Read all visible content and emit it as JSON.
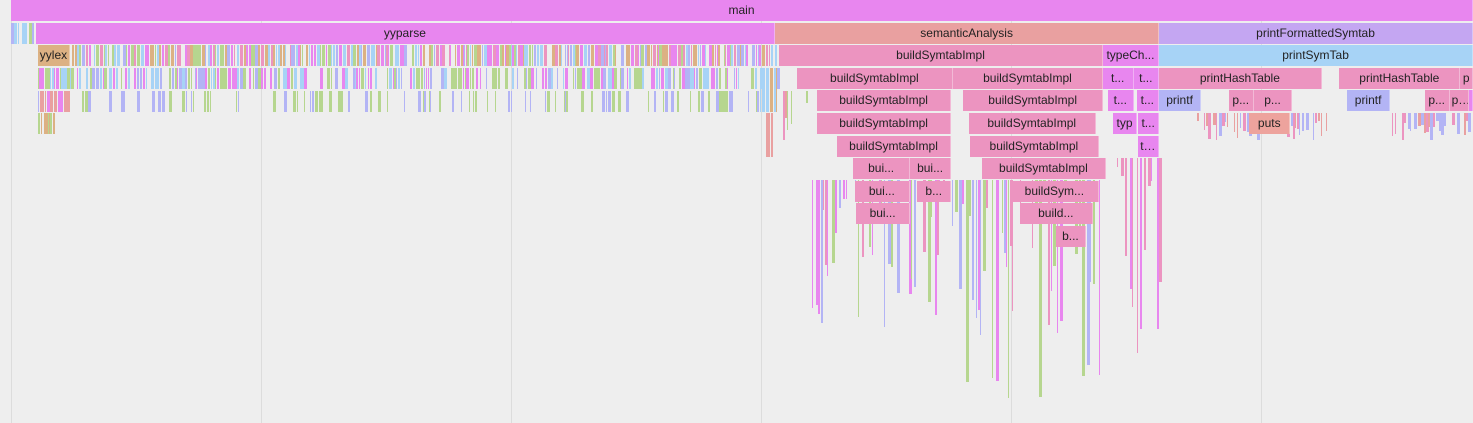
{
  "colors": {
    "magenta": "#e886ef",
    "salmon": "#e9a0a0",
    "pink": "#ec94c0",
    "violet": "#c4a6f2",
    "sky": "#a7d3f6",
    "tan": "#dcb183",
    "green": "#b6d68f",
    "periwinkle": "#b3b4f5",
    "orange_pink": "#eda39d"
  },
  "frames": [
    {
      "name": "main",
      "depth": 0,
      "start": 0.0,
      "end": 1.0,
      "color": "magenta"
    },
    {
      "name": "yyparse",
      "depth": 1,
      "start": 0.0168,
      "end": 0.5227,
      "color": "magenta"
    },
    {
      "name": "semanticAnalysis",
      "depth": 1,
      "start": 0.5227,
      "end": 0.7853,
      "color": "salmon"
    },
    {
      "name": "printFormattedSymtab",
      "depth": 1,
      "start": 0.7853,
      "end": 1.0,
      "color": "violet"
    },
    {
      "name": "yylex",
      "depth": 2,
      "start": 0.0182,
      "end": 0.0406,
      "color": "tan"
    },
    {
      "name": "buildSymtabImpl",
      "depth": 2,
      "start": 0.5255,
      "end": 0.7468,
      "color": "pink"
    },
    {
      "name": "typeCh...",
      "depth": 2,
      "start": 0.7468,
      "end": 0.7853,
      "color": "magenta"
    },
    {
      "name": "printSymTab",
      "depth": 2,
      "start": 0.7853,
      "end": 1.0,
      "color": "sky"
    },
    {
      "name": "buildSymtabImpl",
      "depth": 3,
      "start": 0.5374,
      "end": 0.6444,
      "color": "pink"
    },
    {
      "name": "buildSymtabImpl",
      "depth": 3,
      "start": 0.6444,
      "end": 0.7468,
      "color": "pink"
    },
    {
      "name": "t...",
      "depth": 3,
      "start": 0.7468,
      "end": 0.7678,
      "color": "magenta"
    },
    {
      "name": "t...",
      "depth": 3,
      "start": 0.7678,
      "end": 0.7853,
      "color": "magenta"
    },
    {
      "name": "printHashTable",
      "depth": 3,
      "start": 0.7853,
      "end": 0.8965,
      "color": "pink"
    },
    {
      "name": "printHashTable",
      "depth": 3,
      "start": 0.9085,
      "end": 0.9914,
      "color": "pink"
    },
    {
      "name": "p",
      "depth": 3,
      "start": 0.9914,
      "end": 1.0,
      "color": "pink"
    },
    {
      "name": "buildSymtabImpl",
      "depth": 4,
      "start": 0.5514,
      "end": 0.643,
      "color": "pink"
    },
    {
      "name": "buildSymtabImpl",
      "depth": 4,
      "start": 0.6515,
      "end": 0.7468,
      "color": "pink"
    },
    {
      "name": "t...",
      "depth": 4,
      "start": 0.7504,
      "end": 0.7678,
      "color": "magenta"
    },
    {
      "name": "t...",
      "depth": 4,
      "start": 0.7699,
      "end": 0.7853,
      "color": "magenta"
    },
    {
      "name": "printf",
      "depth": 4,
      "start": 0.7853,
      "end": 0.814,
      "color": "periwinkle"
    },
    {
      "name": "p...",
      "depth": 4,
      "start": 0.833,
      "end": 0.85,
      "color": "pink"
    },
    {
      "name": "p...",
      "depth": 4,
      "start": 0.85,
      "end": 0.8765,
      "color": "pink"
    },
    {
      "name": "printf",
      "depth": 4,
      "start": 0.914,
      "end": 0.9432,
      "color": "periwinkle"
    },
    {
      "name": "p...",
      "depth": 4,
      "start": 0.967,
      "end": 0.984,
      "color": "pink"
    },
    {
      "name": "p...",
      "depth": 4,
      "start": 0.984,
      "end": 0.9975,
      "color": "pink"
    },
    {
      "name": "p",
      "depth": 4,
      "start": 0.9975,
      "end": 1.0,
      "color": "magenta"
    },
    {
      "name": "buildSymtabImpl",
      "depth": 5,
      "start": 0.5514,
      "end": 0.643,
      "color": "pink"
    },
    {
      "name": "buildSymtabImpl",
      "depth": 5,
      "start": 0.655,
      "end": 0.742,
      "color": "pink"
    },
    {
      "name": "typ",
      "depth": 5,
      "start": 0.754,
      "end": 0.77,
      "color": "magenta"
    },
    {
      "name": "t...",
      "depth": 5,
      "start": 0.771,
      "end": 0.7853,
      "color": "magenta"
    },
    {
      "name": "puts",
      "depth": 5,
      "start": 0.847,
      "end": 0.875,
      "color": "orange_pink"
    },
    {
      "name": "buildSymtabImpl",
      "depth": 6,
      "start": 0.565,
      "end": 0.643,
      "color": "pink"
    },
    {
      "name": "buildSymtabImpl",
      "depth": 6,
      "start": 0.656,
      "end": 0.744,
      "color": "pink"
    },
    {
      "name": "typ",
      "depth": 6,
      "start": 0.771,
      "end": 0.7853,
      "color": "magenta"
    },
    {
      "name": "bui...",
      "depth": 7,
      "start": 0.576,
      "end": 0.615,
      "color": "pink"
    },
    {
      "name": "bui...",
      "depth": 7,
      "start": 0.615,
      "end": 0.643,
      "color": "pink"
    },
    {
      "name": "buildSymtabImpl",
      "depth": 7,
      "start": 0.664,
      "end": 0.749,
      "color": "pink"
    },
    {
      "name": "bui...",
      "depth": 8,
      "start": 0.577,
      "end": 0.615,
      "color": "pink"
    },
    {
      "name": "b...",
      "depth": 8,
      "start": 0.62,
      "end": 0.643,
      "color": "pink"
    },
    {
      "name": "buildSym...",
      "depth": 8,
      "start": 0.684,
      "end": 0.744,
      "color": "pink"
    },
    {
      "name": "bui...",
      "depth": 9,
      "start": 0.578,
      "end": 0.615,
      "color": "pink"
    },
    {
      "name": "build...",
      "depth": 9,
      "start": 0.69,
      "end": 0.74,
      "color": "pink"
    },
    {
      "name": "b...",
      "depth": 10,
      "start": 0.715,
      "end": 0.735,
      "color": "pink"
    }
  ]
}
